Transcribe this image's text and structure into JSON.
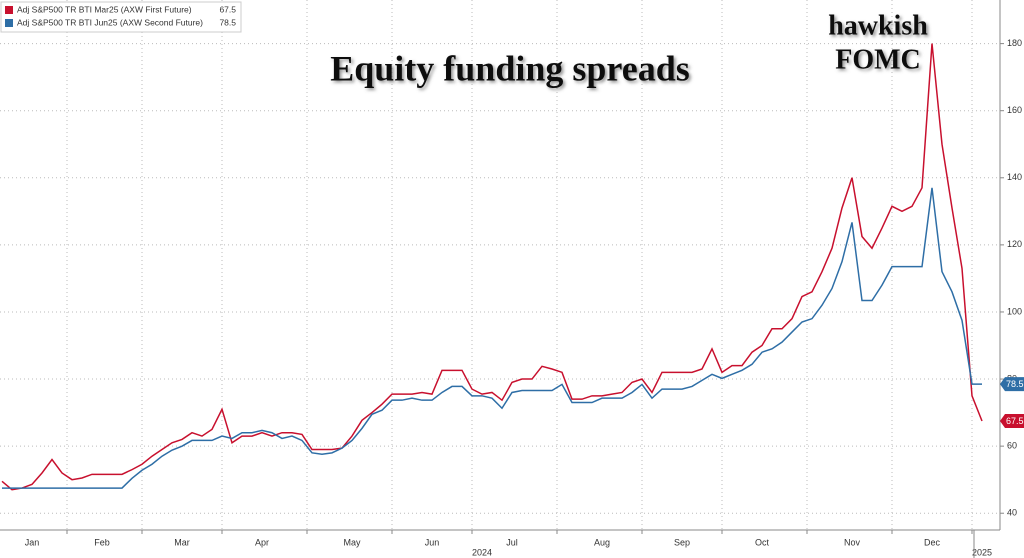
{
  "chart_data": {
    "type": "line",
    "title": "Equity funding spreads",
    "annotation": [
      "hawkish",
      "FOMC"
    ],
    "categories": [
      null,
      null,
      null,
      "Jan",
      null,
      null,
      null,
      null,
      null,
      null,
      "Feb",
      null,
      null,
      null,
      null,
      null,
      null,
      null,
      "Mar",
      null,
      null,
      null,
      null,
      null,
      null,
      null,
      "Apr",
      null,
      null,
      null,
      null,
      null,
      null,
      null,
      null,
      "May",
      null,
      null,
      null,
      null,
      null,
      null,
      null,
      "Jun",
      null,
      null,
      null,
      null,
      null,
      null,
      null,
      "Jul",
      null,
      null,
      null,
      null,
      null,
      null,
      null,
      null,
      "Aug",
      null,
      null,
      null,
      null,
      null,
      null,
      null,
      "Sep",
      null,
      null,
      null,
      null,
      null,
      null,
      null,
      "Oct",
      null,
      null,
      null,
      null,
      null,
      null,
      null,
      null,
      "Nov",
      null,
      null,
      null,
      null,
      null,
      null,
      null,
      "Dec",
      null,
      null,
      null,
      null,
      null
    ],
    "year_labels": [
      "2024",
      "2025"
    ],
    "series": [
      {
        "name": "Adj S&P500 TR BTI Mar25 (AXW First Future)",
        "color": "#c8102e",
        "values": [
          49.5,
          47,
          47.5,
          48.6,
          52,
          56,
          52,
          50,
          50.5,
          51.6,
          51.6,
          51.6,
          51.6,
          53,
          54.6,
          57,
          59,
          61,
          62,
          64,
          63,
          65,
          71,
          61,
          63,
          63,
          64,
          63,
          64,
          64,
          63.5,
          59,
          59,
          59,
          59.4,
          63,
          67.7,
          70,
          72.5,
          75.5,
          75.5,
          75.5,
          76,
          75.5,
          82.6,
          82.6,
          82.6,
          77,
          75.5,
          76,
          73.7,
          79,
          80,
          80,
          83.8,
          83,
          82,
          74,
          74,
          75,
          75,
          75.5,
          76,
          79,
          80,
          76,
          82,
          82,
          82,
          82,
          83,
          89,
          82,
          84,
          84,
          88,
          90,
          95,
          95,
          98,
          104.6,
          106,
          112,
          119,
          131,
          140,
          122.5,
          119,
          125,
          131.5,
          130,
          131.5,
          137,
          180,
          150,
          131,
          113,
          75,
          67.5
        ]
      },
      {
        "name": "Adj S&P500 TR BTI Jun25 (AXW Second Future)",
        "color": "#2e6ea6",
        "values": [
          47.5,
          47.5,
          47.5,
          47.5,
          47.5,
          47.5,
          47.5,
          47.5,
          47.5,
          47.5,
          47.5,
          47.5,
          47.5,
          50.4,
          52.8,
          54.6,
          57,
          58.8,
          60,
          61.7,
          61.7,
          61.7,
          63,
          62.3,
          64,
          64,
          64.7,
          64,
          62.3,
          63,
          61.7,
          58,
          57.6,
          58,
          59.4,
          61.7,
          65.3,
          69.5,
          70.7,
          73.7,
          73.7,
          74.3,
          73.7,
          73.7,
          76,
          77.8,
          77.8,
          75,
          75,
          74.3,
          71.3,
          76,
          76.6,
          76.6,
          76.6,
          76.6,
          78.4,
          73,
          73,
          73,
          74.3,
          74.3,
          74.3,
          76,
          78.4,
          74.3,
          77,
          77,
          77,
          77.8,
          79.6,
          81.4,
          80.2,
          81.4,
          82.6,
          84.4,
          88,
          89,
          91,
          94,
          97,
          98,
          102,
          107,
          115,
          126.7,
          103.4,
          103.4,
          108,
          113.5,
          113.5,
          113.5,
          113.5,
          137,
          112,
          106,
          97.5,
          78.5,
          78.5
        ]
      }
    ],
    "ylim": [
      35,
      193
    ],
    "yticks": [
      40,
      60,
      80,
      100,
      120,
      140,
      160,
      180
    ],
    "grid": true
  }
}
